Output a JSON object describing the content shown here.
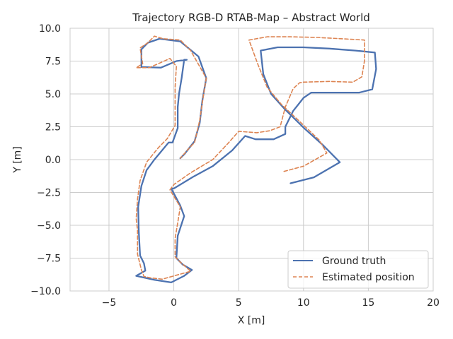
{
  "chart_data": {
    "type": "line",
    "title": "Trajectory RGB-D RTAB-Map – Abstract World",
    "xlabel": "X [m]",
    "ylabel": "Y [m]",
    "xlim": [
      -8,
      20
    ],
    "ylim": [
      -10,
      10
    ],
    "xticks": [
      -5,
      0,
      5,
      10,
      15,
      20
    ],
    "yticks": [
      -10.0,
      -7.5,
      -5.0,
      -2.5,
      0.0,
      2.5,
      5.0,
      7.5,
      10.0
    ],
    "xtick_labels": [
      "−5",
      "0",
      "5",
      "10",
      "15",
      "20"
    ],
    "ytick_labels": [
      "−10.0",
      "−7.5",
      "−5.0",
      "−2.5",
      "0.0",
      "2.5",
      "5.0",
      "7.5",
      "10.0"
    ],
    "grid": true,
    "legend_position": "lower-right",
    "series": [
      {
        "name": "Ground truth",
        "color": "#4c72b0",
        "style": "solid",
        "points": [
          [
            9.0,
            -1.8
          ],
          [
            10.8,
            -1.35
          ],
          [
            12.8,
            -0.2
          ],
          [
            11.5,
            1.1
          ],
          [
            10.1,
            2.35
          ],
          [
            8.6,
            3.8
          ],
          [
            7.5,
            5.0
          ],
          [
            6.9,
            6.5
          ],
          [
            6.7,
            8.3
          ],
          [
            8.0,
            8.55
          ],
          [
            10.0,
            8.55
          ],
          [
            12.0,
            8.45
          ],
          [
            14.0,
            8.3
          ],
          [
            15.5,
            8.15
          ],
          [
            15.6,
            6.9
          ],
          [
            15.3,
            5.35
          ],
          [
            14.3,
            5.1
          ],
          [
            12.0,
            5.1
          ],
          [
            10.6,
            5.1
          ],
          [
            10.0,
            4.7
          ],
          [
            9.2,
            3.7
          ],
          [
            8.6,
            2.5
          ],
          [
            8.6,
            1.95
          ],
          [
            7.7,
            1.55
          ],
          [
            6.3,
            1.55
          ],
          [
            5.5,
            1.8
          ],
          [
            4.5,
            0.7
          ],
          [
            3.0,
            -0.5
          ],
          [
            1.5,
            -1.3
          ],
          [
            0.0,
            -2.2
          ],
          [
            -0.2,
            -2.2
          ],
          [
            0.5,
            -3.5
          ],
          [
            0.8,
            -4.3
          ],
          [
            0.3,
            -5.8
          ],
          [
            0.2,
            -7.5
          ],
          [
            0.7,
            -8.0
          ],
          [
            1.4,
            -8.4
          ],
          [
            0.8,
            -8.85
          ],
          [
            -0.2,
            -9.35
          ],
          [
            -1.5,
            -9.15
          ],
          [
            -2.9,
            -8.85
          ],
          [
            -2.2,
            -8.45
          ],
          [
            -2.3,
            -7.9
          ],
          [
            -2.6,
            -7.3
          ],
          [
            -2.7,
            -5.5
          ],
          [
            -2.75,
            -3.6
          ],
          [
            -2.5,
            -2.0
          ],
          [
            -2.1,
            -0.8
          ],
          [
            -1.5,
            0.0
          ],
          [
            -0.4,
            1.3
          ],
          [
            -0.1,
            1.3
          ],
          [
            0.3,
            2.4
          ],
          [
            0.3,
            4.0
          ],
          [
            0.4,
            5.0
          ],
          [
            0.6,
            6.2
          ],
          [
            0.8,
            7.6
          ],
          [
            1.0,
            7.6
          ],
          [
            0.2,
            7.5
          ],
          [
            -1.0,
            7.0
          ],
          [
            -2.5,
            7.05
          ],
          [
            -2.5,
            8.4
          ],
          [
            -2.0,
            8.9
          ],
          [
            -1.1,
            9.2
          ],
          [
            0.5,
            9.0
          ],
          [
            1.9,
            7.85
          ],
          [
            2.5,
            6.2
          ],
          [
            2.2,
            4.5
          ],
          [
            2.0,
            2.8
          ],
          [
            1.6,
            1.4
          ],
          [
            0.8,
            0.4
          ],
          [
            0.5,
            0.1
          ]
        ]
      },
      {
        "name": "Estimated position",
        "color": "#dd8452",
        "style": "dashed",
        "points": [
          [
            8.5,
            -0.9
          ],
          [
            10.0,
            -0.5
          ],
          [
            11.8,
            0.5
          ],
          [
            11.2,
            1.5
          ],
          [
            9.6,
            3.0
          ],
          [
            8.3,
            4.2
          ],
          [
            7.2,
            5.5
          ],
          [
            6.5,
            7.2
          ],
          [
            5.8,
            9.1
          ],
          [
            7.2,
            9.35
          ],
          [
            9.0,
            9.35
          ],
          [
            11.0,
            9.3
          ],
          [
            13.0,
            9.2
          ],
          [
            14.7,
            9.1
          ],
          [
            14.7,
            7.5
          ],
          [
            14.5,
            6.3
          ],
          [
            13.8,
            5.9
          ],
          [
            12.0,
            5.95
          ],
          [
            10.0,
            5.9
          ],
          [
            9.7,
            5.85
          ],
          [
            9.2,
            5.4
          ],
          [
            8.6,
            4.0
          ],
          [
            8.2,
            2.5
          ],
          [
            7.4,
            2.2
          ],
          [
            6.4,
            2.05
          ],
          [
            5.0,
            2.15
          ],
          [
            4.1,
            1.15
          ],
          [
            3.0,
            0.0
          ],
          [
            1.3,
            -1.0
          ],
          [
            0.0,
            -1.9
          ],
          [
            -0.3,
            -2.3
          ],
          [
            0.5,
            -3.6
          ],
          [
            0.3,
            -4.8
          ],
          [
            0.1,
            -6.0
          ],
          [
            0.1,
            -7.4
          ],
          [
            0.5,
            -7.8
          ],
          [
            1.3,
            -8.5
          ],
          [
            0.2,
            -8.8
          ],
          [
            -0.9,
            -9.1
          ],
          [
            -1.8,
            -9.0
          ],
          [
            -2.3,
            -8.9
          ],
          [
            -2.5,
            -8.4
          ],
          [
            -2.8,
            -7.2
          ],
          [
            -2.8,
            -5.4
          ],
          [
            -2.9,
            -4.5
          ],
          [
            -2.8,
            -3.0
          ],
          [
            -2.6,
            -1.6
          ],
          [
            -2.1,
            -0.2
          ],
          [
            -1.2,
            0.9
          ],
          [
            -0.8,
            1.3
          ],
          [
            -0.5,
            1.6
          ],
          [
            0.1,
            2.6
          ],
          [
            0.1,
            3.5
          ],
          [
            0.1,
            5.5
          ],
          [
            0.2,
            7.1
          ],
          [
            -0.3,
            7.7
          ],
          [
            -1.2,
            7.3
          ],
          [
            -1.9,
            7.0
          ],
          [
            -2.9,
            7.0
          ],
          [
            -2.4,
            7.3
          ],
          [
            -2.6,
            8.5
          ],
          [
            -2.0,
            8.9
          ],
          [
            -1.5,
            9.4
          ],
          [
            -0.8,
            9.2
          ],
          [
            0.5,
            9.1
          ],
          [
            1.3,
            8.3
          ],
          [
            2.5,
            6.2
          ],
          [
            2.3,
            5.0
          ],
          [
            2.0,
            3.0
          ],
          [
            1.6,
            1.3
          ],
          [
            1.2,
            0.9
          ],
          [
            0.5,
            0.1
          ]
        ]
      }
    ]
  }
}
